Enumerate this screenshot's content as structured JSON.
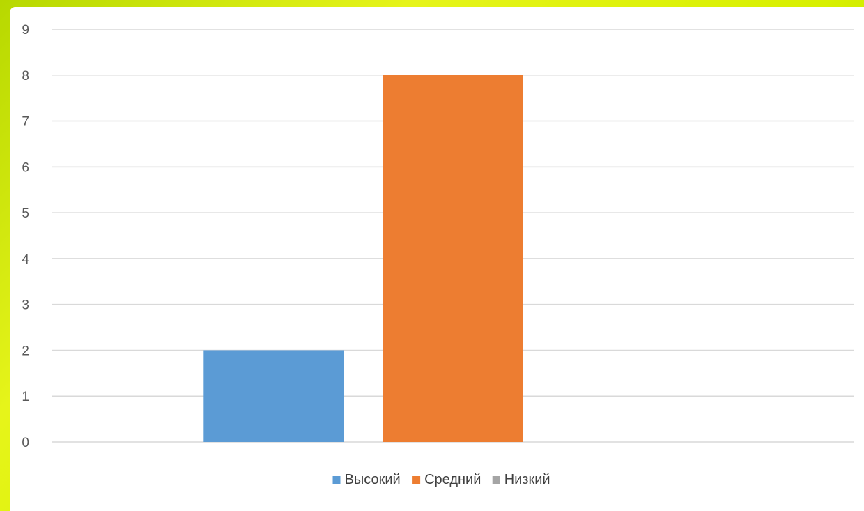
{
  "chart_data": {
    "type": "bar",
    "categories": [
      ""
    ],
    "series": [
      {
        "name": "Высокий",
        "values": [
          2
        ],
        "color": "#5b9bd5"
      },
      {
        "name": "Средний",
        "values": [
          8
        ],
        "color": "#ed7d31"
      },
      {
        "name": "Низкий",
        "values": [
          0
        ],
        "color": "#a5a5a5"
      }
    ],
    "yticks": [
      "0",
      "1",
      "2",
      "3",
      "4",
      "5",
      "6",
      "7",
      "8",
      "9"
    ],
    "ylim": [
      0,
      9
    ],
    "grid": true,
    "legend_position": "bottom"
  }
}
